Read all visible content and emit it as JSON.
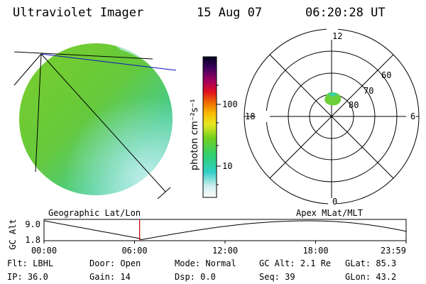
{
  "header": {
    "instrument": "Ultraviolet Imager",
    "date": "15 Aug 07",
    "time": "06:20:28 UT"
  },
  "colorbar": {
    "unit_label": "photon cm⁻²s⁻¹",
    "ticks": [
      "100",
      "10"
    ]
  },
  "polar": {
    "mlt_labels": {
      "top": "12",
      "left": "18",
      "right": "6",
      "bottom": "0"
    },
    "lat_labels": [
      "60",
      "70",
      "80"
    ]
  },
  "panel_titles": {
    "left": "Geographic Lat/Lon",
    "right": "Apex MLat/MLT"
  },
  "orbit_plot": {
    "ylabel": "GC Alt",
    "yticks": [
      "9.0",
      "1.8"
    ],
    "xticks": [
      "00:00",
      "06:00",
      "12:00",
      "18:00",
      "23:59"
    ],
    "current_time_fraction": 0.264
  },
  "status": {
    "row1": [
      {
        "label": "Flt:",
        "value": "LBHL"
      },
      {
        "label": "Door:",
        "value": "Open"
      },
      {
        "label": "Mode:",
        "value": "Normal"
      },
      {
        "label": "GC Alt:",
        "value": "2.1 Re"
      },
      {
        "label": "GLat:",
        "value": "85.3"
      }
    ],
    "row2": [
      {
        "label": "IP:",
        "value": "36.0"
      },
      {
        "label": "Gain:",
        "value": "14"
      },
      {
        "label": "Dsp:",
        "value": "0.0"
      },
      {
        "label": "Seq:",
        "value": "39"
      },
      {
        "label": "GLon:",
        "value": "43.2"
      }
    ]
  }
}
